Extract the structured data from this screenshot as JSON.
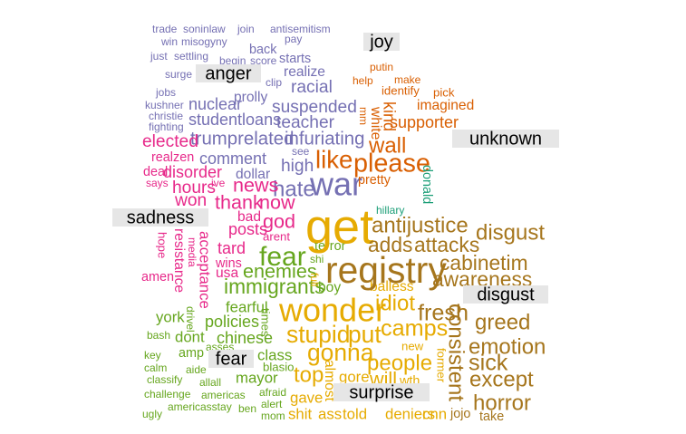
{
  "chart_data": {
    "type": "wordcloud",
    "colors": {
      "anger": "#7570b3",
      "joy": "#d95f02",
      "unknown": "#1b9e77",
      "sadness": "#e7298a",
      "fear": "#66a61e",
      "surprise": "#e6ab02",
      "disgust": "#a6761d"
    },
    "groups": [
      {
        "name": "anger",
        "words": [
          {
            "text": "trade",
            "size": 1
          },
          {
            "text": "soninlaw",
            "size": 1
          },
          {
            "text": "antisemitism",
            "size": 1
          },
          {
            "text": "win",
            "size": 1
          },
          {
            "text": "misogyny",
            "size": 1
          },
          {
            "text": "join",
            "size": 1
          },
          {
            "text": "pay",
            "size": 1
          },
          {
            "text": "back",
            "size": 1.2
          },
          {
            "text": "just",
            "size": 1
          },
          {
            "text": "settling",
            "size": 1
          },
          {
            "text": "begin",
            "size": 1
          },
          {
            "text": "score",
            "size": 1
          },
          {
            "text": "starts",
            "size": 1.2
          },
          {
            "text": "realize",
            "size": 1.3
          },
          {
            "text": "surge",
            "size": 1
          },
          {
            "text": "clip",
            "size": 1
          },
          {
            "text": "racial",
            "size": 1.6
          },
          {
            "text": "jobs",
            "size": 1
          },
          {
            "text": "prolly",
            "size": 1.3
          },
          {
            "text": "nuclear",
            "size": 1.5
          },
          {
            "text": "kushner",
            "size": 1
          },
          {
            "text": "suspended",
            "size": 1.6
          },
          {
            "text": "christie",
            "size": 1
          },
          {
            "text": "studentloans",
            "size": 1.5
          },
          {
            "text": "teacher",
            "size": 1.6
          },
          {
            "text": "fighting",
            "size": 1
          },
          {
            "text": "trumprelated",
            "size": 1.7
          },
          {
            "text": "infuriating",
            "size": 1.7
          },
          {
            "text": "comment",
            "size": 1.5
          },
          {
            "text": "see",
            "size": 1
          },
          {
            "text": "high",
            "size": 1.6
          },
          {
            "text": "dollar",
            "size": 1.3
          },
          {
            "text": "hate",
            "size": 2
          },
          {
            "text": "war",
            "size": 3
          }
        ]
      },
      {
        "name": "joy",
        "words": [
          {
            "text": "putin",
            "size": 1
          },
          {
            "text": "make",
            "size": 1
          },
          {
            "text": "help",
            "size": 1
          },
          {
            "text": "identify",
            "size": 1.1
          },
          {
            "text": "pick",
            "size": 1.1
          },
          {
            "text": "imagined",
            "size": 1.3
          },
          {
            "text": "mm",
            "size": 1
          },
          {
            "text": "white",
            "size": 1.3
          },
          {
            "text": "kind",
            "size": 1.5
          },
          {
            "text": "supporter",
            "size": 1.5
          },
          {
            "text": "wall",
            "size": 2
          },
          {
            "text": "like",
            "size": 2.3
          },
          {
            "text": "please",
            "size": 2.4
          },
          {
            "text": "pretty",
            "size": 1.2
          }
        ]
      },
      {
        "name": "unknown",
        "words": [
          {
            "text": "donald",
            "size": 1.2
          },
          {
            "text": "hillary",
            "size": 1
          }
        ]
      },
      {
        "name": "sadness",
        "words": [
          {
            "text": "elected",
            "size": 1.6
          },
          {
            "text": "realzen",
            "size": 1.2
          },
          {
            "text": "deal",
            "size": 1.2
          },
          {
            "text": "disorder",
            "size": 1.5
          },
          {
            "text": "says",
            "size": 1
          },
          {
            "text": "hours",
            "size": 1.6
          },
          {
            "text": "ive",
            "size": 1
          },
          {
            "text": "news",
            "size": 1.8
          },
          {
            "text": "won",
            "size": 1.6
          },
          {
            "text": "thank",
            "size": 1.8
          },
          {
            "text": "now",
            "size": 1.8
          },
          {
            "text": "bad",
            "size": 1.3
          },
          {
            "text": "god",
            "size": 1.8
          },
          {
            "text": "posts",
            "size": 1.5
          },
          {
            "text": "arent",
            "size": 1.1
          },
          {
            "text": "hope",
            "size": 1.1
          },
          {
            "text": "resistance",
            "size": 1.3
          },
          {
            "text": "media",
            "size": 1
          },
          {
            "text": "acceptance",
            "size": 1.4
          },
          {
            "text": "tard",
            "size": 1.5
          },
          {
            "text": "wins",
            "size": 1.2
          },
          {
            "text": "usa",
            "size": 1.3
          },
          {
            "text": "amen",
            "size": 1.2
          }
        ]
      },
      {
        "name": "fear",
        "words": [
          {
            "text": "fear",
            "size": 2.5
          },
          {
            "text": "terror",
            "size": 1.2
          },
          {
            "text": "shi",
            "size": 1
          },
          {
            "text": "enemies",
            "size": 1.8
          },
          {
            "text": "immigrants",
            "size": 1.9
          },
          {
            "text": "boy",
            "size": 1.3
          },
          {
            "text": "fearful",
            "size": 1.4
          },
          {
            "text": "york",
            "size": 1.4
          },
          {
            "text": "drivel",
            "size": 1
          },
          {
            "text": "policies",
            "size": 1.5
          },
          {
            "text": "times",
            "size": 1.1
          },
          {
            "text": "bash",
            "size": 1
          },
          {
            "text": "dont",
            "size": 1.4
          },
          {
            "text": "chinese",
            "size": 1.5
          },
          {
            "text": "key",
            "size": 1
          },
          {
            "text": "amp",
            "size": 1.2
          },
          {
            "text": "asses",
            "size": 1
          },
          {
            "text": "class",
            "size": 1.4
          },
          {
            "text": "blasio",
            "size": 1.1
          },
          {
            "text": "calm",
            "size": 1
          },
          {
            "text": "aide",
            "size": 1
          },
          {
            "text": "classify",
            "size": 1
          },
          {
            "text": "allall",
            "size": 1
          },
          {
            "text": "mayor",
            "size": 1.4
          },
          {
            "text": "challenge",
            "size": 1
          },
          {
            "text": "americas",
            "size": 1
          },
          {
            "text": "afraid",
            "size": 1
          },
          {
            "text": "americasstay",
            "size": 1
          },
          {
            "text": "ben",
            "size": 1
          },
          {
            "text": "alert",
            "size": 1
          },
          {
            "text": "ugly",
            "size": 1
          },
          {
            "text": "mom",
            "size": 1
          }
        ]
      },
      {
        "name": "surprise",
        "words": [
          {
            "text": "get",
            "size": 4.5
          },
          {
            "text": "wonder",
            "size": 3
          },
          {
            "text": "idiot",
            "size": 2
          },
          {
            "text": "balless",
            "size": 1.3
          },
          {
            "text": "stupid",
            "size": 2.2
          },
          {
            "text": "put",
            "size": 2.2
          },
          {
            "text": "camps",
            "size": 2.1
          },
          {
            "text": "full",
            "size": 1
          },
          {
            "text": "gonna",
            "size": 2.2
          },
          {
            "text": "people",
            "size": 2
          },
          {
            "text": "new",
            "size": 1.1
          },
          {
            "text": "top",
            "size": 2
          },
          {
            "text": "almost",
            "size": 1.3
          },
          {
            "text": "gore",
            "size": 1.4
          },
          {
            "text": "will",
            "size": 1.8
          },
          {
            "text": "wth",
            "size": 1.2
          },
          {
            "text": "gave",
            "size": 1.4
          },
          {
            "text": "shit",
            "size": 1.4
          },
          {
            "text": "ass",
            "size": 1.4
          },
          {
            "text": "told",
            "size": 1.4
          },
          {
            "text": "deniers",
            "size": 1.4
          },
          {
            "text": "cnn",
            "size": 1.4
          },
          {
            "text": "former",
            "size": 1.1
          }
        ]
      },
      {
        "name": "disgust",
        "words": [
          {
            "text": "antijustice",
            "size": 2
          },
          {
            "text": "disgust",
            "size": 2
          },
          {
            "text": "adds",
            "size": 1.9
          },
          {
            "text": "attacks",
            "size": 1.9
          },
          {
            "text": "registry",
            "size": 3.4
          },
          {
            "text": "cabinetim",
            "size": 1.9
          },
          {
            "text": "awareness",
            "size": 1.9
          },
          {
            "text": "fresh",
            "size": 2.1
          },
          {
            "text": "greed",
            "size": 2
          },
          {
            "text": "consistent",
            "size": 2
          },
          {
            "text": "emotion",
            "size": 2
          },
          {
            "text": "sick",
            "size": 2.1
          },
          {
            "text": "except",
            "size": 2
          },
          {
            "text": "horror",
            "size": 2
          },
          {
            "text": "jojo",
            "size": 1.2
          },
          {
            "text": "take",
            "size": 1.2
          }
        ]
      }
    ]
  }
}
